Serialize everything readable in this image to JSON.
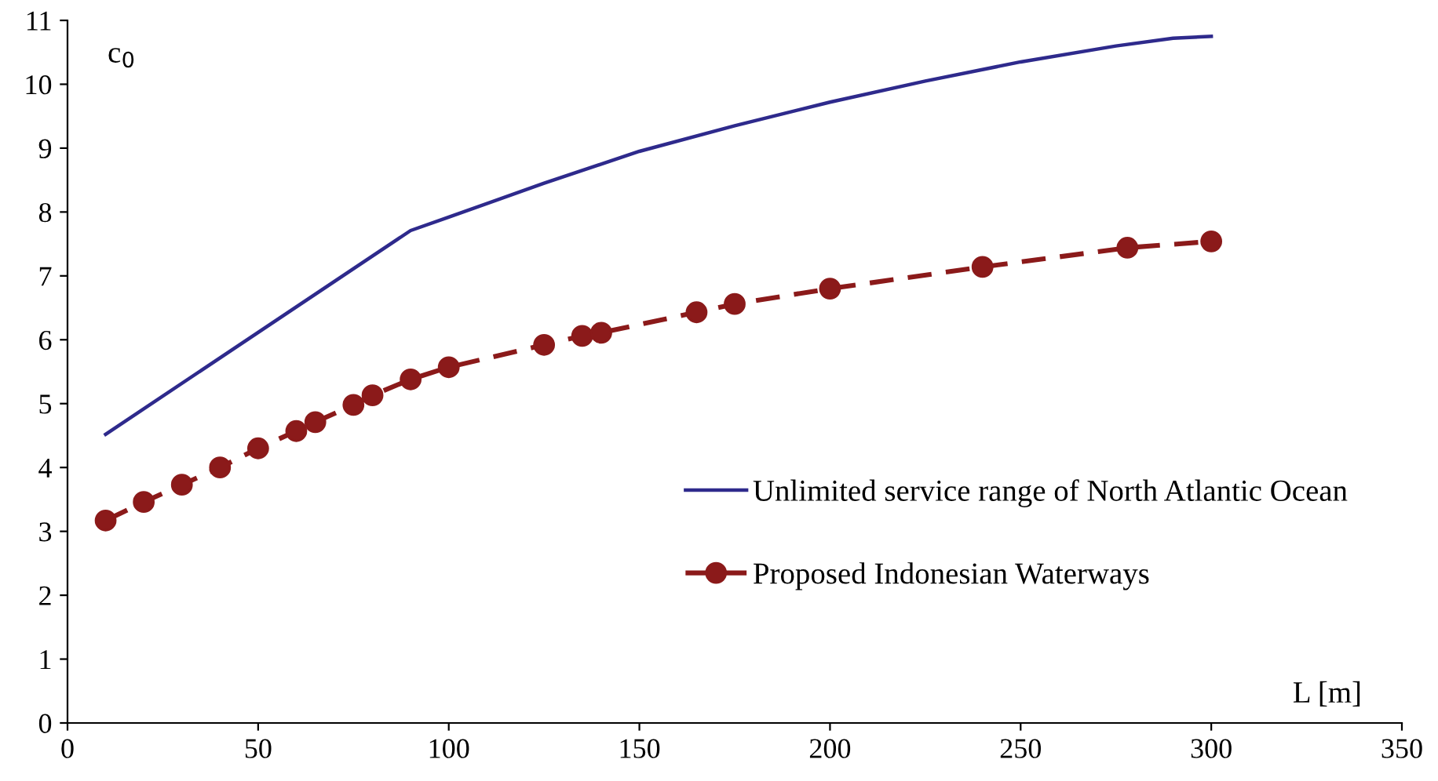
{
  "chart_data": {
    "type": "line",
    "xlabel": "L [m]",
    "ylabel": "c$_{0}$",
    "xlim": [
      0,
      350
    ],
    "ylim": [
      0,
      11
    ],
    "xticks": [
      0,
      50,
      100,
      150,
      200,
      250,
      300,
      350
    ],
    "yticks": [
      0,
      1,
      2,
      3,
      4,
      5,
      6,
      7,
      8,
      9,
      10,
      11
    ],
    "grid": false,
    "legend": "bottom right",
    "series": [
      {
        "name": "Unlimited service range of North Atlantic Ocean",
        "color": "#2e2a8c",
        "marker": "none",
        "line_style": "solid",
        "x": [
          10,
          90,
          100,
          125,
          150,
          175,
          200,
          225,
          250,
          275,
          290,
          300
        ],
        "values": [
          4.52,
          7.71,
          7.92,
          8.45,
          8.95,
          9.35,
          9.72,
          10.05,
          10.35,
          10.6,
          10.72,
          10.75
        ]
      },
      {
        "name": "Proposed Indonesian Waterways",
        "color": "#8b1a1a",
        "marker": "circle",
        "line_style": "dashed",
        "x": [
          10,
          20,
          30,
          40,
          50,
          60,
          65,
          75,
          80,
          90,
          100,
          125,
          135,
          140,
          165,
          175,
          200,
          240,
          278,
          300
        ],
        "values": [
          3.17,
          3.46,
          3.73,
          4.0,
          4.3,
          4.57,
          4.71,
          4.98,
          5.13,
          5.38,
          5.57,
          5.92,
          6.06,
          6.11,
          6.43,
          6.56,
          6.8,
          7.14,
          7.44,
          7.54
        ]
      }
    ]
  }
}
